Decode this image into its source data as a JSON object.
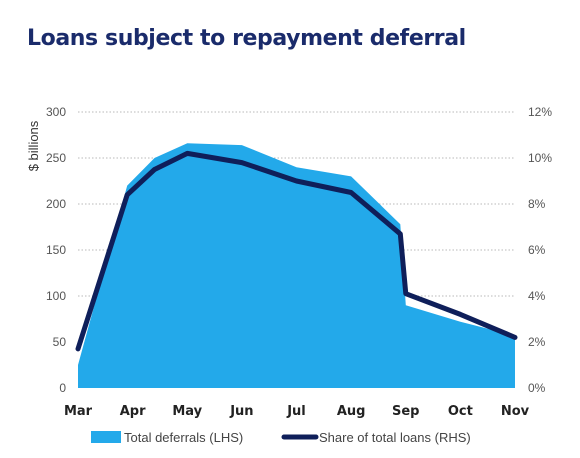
{
  "colors": {
    "title": "#1a2b6b",
    "area": "#23a9ea",
    "line": "#0f1f5a",
    "grid": "#b8b8b8"
  },
  "chart_data": {
    "type": "area",
    "title": "Loans subject to repayment deferral",
    "ylabel": "$ billions",
    "categories": [
      "Mar",
      "Apr",
      "May",
      "Jun",
      "Jul",
      "Aug",
      "Sep",
      "Oct",
      "Nov"
    ],
    "x": [
      0.0,
      0.9,
      1.4,
      2.0,
      3.0,
      4.0,
      5.0,
      5.9,
      6.0,
      7.0,
      8.0
    ],
    "y_left_ticks": [
      "0",
      "50",
      "100",
      "150",
      "200",
      "250",
      "300"
    ],
    "y_right_ticks": [
      "0%",
      "2%",
      "4%",
      "6%",
      "8%",
      "10%",
      "12%"
    ],
    "ylim_left": [
      0,
      300
    ],
    "ylim_right": [
      0,
      12
    ],
    "grid": true,
    "legend_position": "bottom",
    "series": [
      {
        "name": "Total deferrals (LHS)",
        "axis": "left",
        "type": "area",
        "values": [
          25,
          220,
          250,
          266,
          264,
          240,
          230,
          178,
          90,
          72,
          57
        ]
      },
      {
        "name": "Share of total loans (RHS)",
        "axis": "right",
        "type": "line",
        "values": [
          1.7,
          8.4,
          9.5,
          10.2,
          9.8,
          9.0,
          8.5,
          6.7,
          4.1,
          3.2,
          2.2
        ]
      }
    ]
  }
}
